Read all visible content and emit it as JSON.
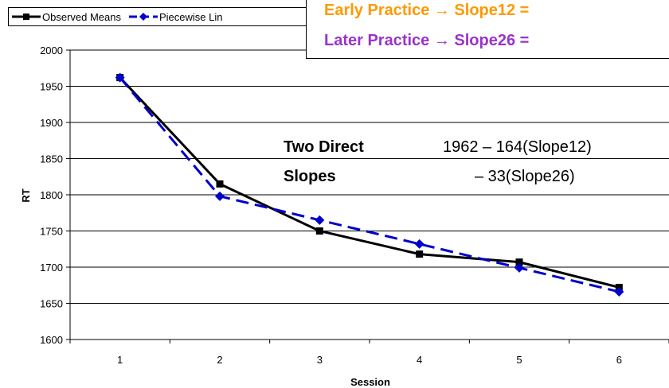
{
  "legend": {
    "observed": "Observed Means",
    "piecewise": "Piecewise Lin"
  },
  "callout": {
    "line1": "Early Practice → Slope12 =",
    "line2": "Later Practice → Slope26 ="
  },
  "annotation": {
    "label1": "Two Direct",
    "label2": "Slopes",
    "eq1": "1962 – 164(Slope12)",
    "eq2": "– 33(Slope26)"
  },
  "chart_data": {
    "type": "line",
    "x": [
      1,
      2,
      3,
      4,
      5,
      6
    ],
    "xlabel": "Session",
    "ylabel": "RT",
    "ylim": [
      1600,
      2000
    ],
    "yticks": [
      1600,
      1650,
      1700,
      1750,
      1800,
      1850,
      1900,
      1950,
      2000
    ],
    "grid": "horizontal",
    "legend_position": "top-left",
    "series": [
      {
        "name": "Observed Means",
        "color": "#000000",
        "values": [
          1962,
          1815,
          1750,
          1718,
          1707,
          1672
        ]
      },
      {
        "name": "Piecewise Lin",
        "color": "#0000cc",
        "values": [
          1962,
          1798,
          1765,
          1732,
          1699,
          1666
        ]
      }
    ]
  }
}
